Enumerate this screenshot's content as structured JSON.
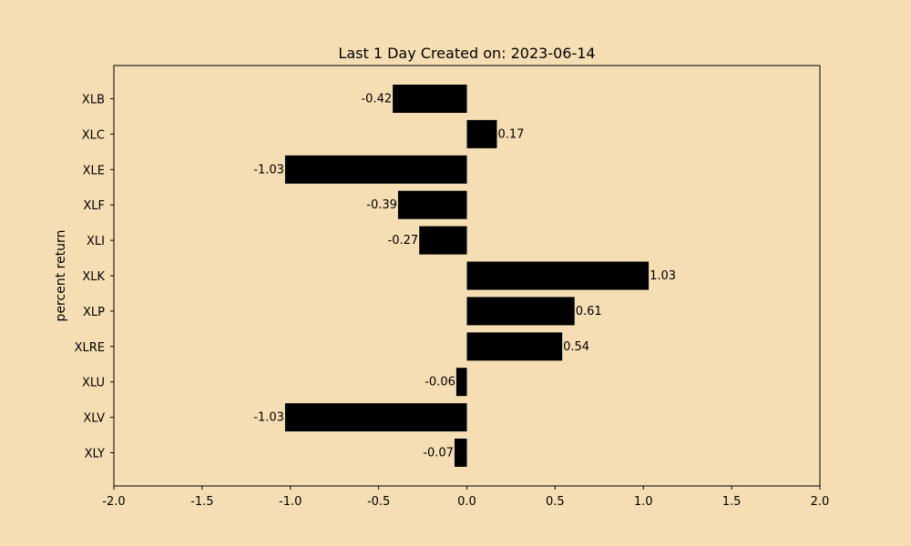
{
  "chart_data": {
    "type": "bar",
    "orientation": "horizontal",
    "title": "Last 1 Day Created on: 2023-06-14",
    "xlabel": "",
    "ylabel": "percent return",
    "categories": [
      "XLB",
      "XLC",
      "XLE",
      "XLF",
      "XLI",
      "XLK",
      "XLP",
      "XLRE",
      "XLU",
      "XLV",
      "XLY"
    ],
    "values": [
      -0.42,
      0.17,
      -1.03,
      -0.39,
      -0.27,
      1.03,
      0.61,
      0.54,
      -0.06,
      -1.03,
      -0.07
    ],
    "value_labels": [
      "-0.42",
      "0.17",
      "-1.03",
      "-0.39",
      "-0.27",
      "1.03",
      "0.61",
      "0.54",
      "-0.06",
      "-1.03",
      "-0.07"
    ],
    "xlim": [
      -2.0,
      2.0
    ],
    "xticks": [
      "-2.0",
      "-1.5",
      "-1.0",
      "-0.5",
      "0.0",
      "0.5",
      "1.0",
      "1.5",
      "2.0"
    ],
    "grid": false,
    "colors": {
      "background": "#f5deb3",
      "bar": "#000000"
    }
  }
}
